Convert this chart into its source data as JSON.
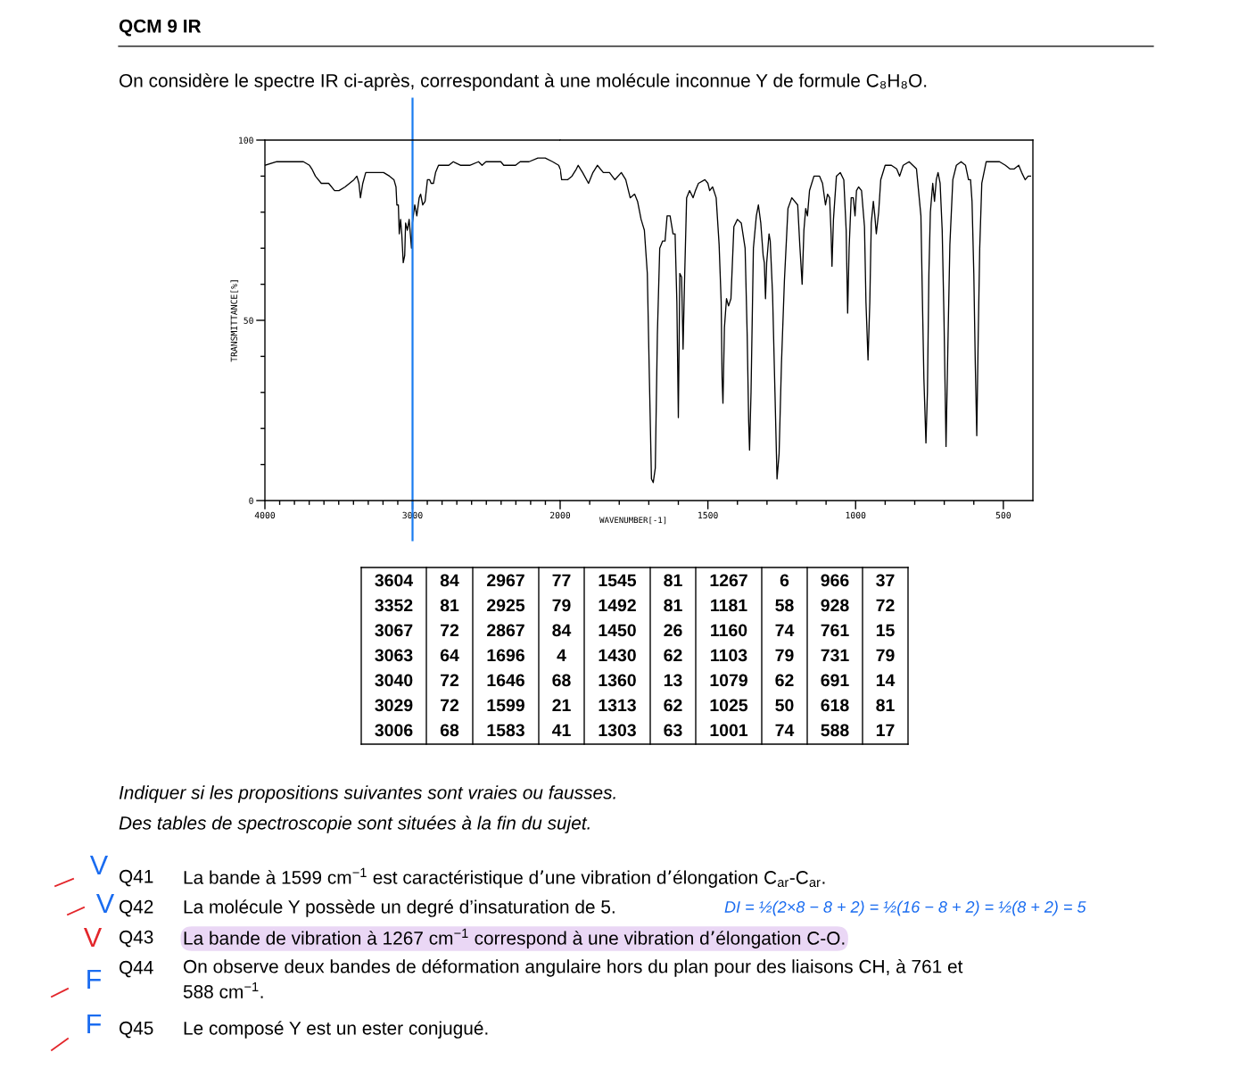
{
  "chart_data": [
    {
      "type": "line",
      "title": "QCM 9 IR",
      "subtitle": "On considère le spectre IR ci-après, correspondant à une molécule inconnue Y de formule C₈H₈O.",
      "ylabel": "TRANSMITTANCE[%]",
      "color": "#000000",
      "x": [
        4000,
        3920,
        3819,
        3739,
        3698,
        3682,
        3658,
        3618,
        3568,
        3528,
        3498,
        3457,
        3397,
        3377,
        3363,
        3353,
        3337,
        3317,
        3276,
        3196,
        3156,
        3126,
        3112,
        3106,
        3096,
        3090,
        3081,
        3073,
        3063,
        3053,
        3047,
        3035,
        3023,
        3015,
        3007,
        3001,
        2985,
        2971,
        2955,
        2945,
        2931,
        2915,
        2899,
        2884,
        2874,
        2858,
        2844,
        2824,
        2754,
        2724,
        2673,
        2643,
        2613,
        2553,
        2529,
        2503,
        2402,
        2382,
        2302,
        2271,
        2211,
        2151,
        2101,
        2051,
        2010,
        2000
      ],
      "values": [
        93,
        94,
        94,
        94,
        93,
        92,
        90,
        88,
        88,
        86,
        86,
        87,
        89,
        90,
        88,
        84,
        88,
        91,
        91,
        91,
        90,
        89,
        87,
        82,
        82,
        74,
        78,
        74,
        66,
        68,
        77,
        75,
        78,
        74,
        70,
        77,
        82,
        79,
        84,
        85,
        82,
        83,
        89,
        89,
        88,
        88,
        91,
        93,
        93,
        94,
        93,
        93,
        93,
        94,
        93,
        94,
        94,
        93,
        93,
        94,
        94,
        95,
        95,
        94,
        93,
        92
      ],
      "xlim": [
        4000,
        2000
      ],
      "ylim": [
        0,
        100
      ],
      "xticks": [
        4000,
        {
          "value": 3900,
          "label": null
        },
        {
          "value": 3800,
          "label": null
        },
        {
          "value": 3700,
          "label": null
        },
        {
          "value": 3600,
          "label": null
        },
        {
          "value": 3500,
          "label": null
        },
        {
          "value": 3400,
          "label": null
        },
        {
          "value": 3300,
          "label": null
        },
        {
          "value": 3200,
          "label": null
        },
        {
          "value": 3100,
          "label": null
        },
        3000,
        {
          "value": 2900,
          "label": null
        },
        {
          "value": 2800,
          "label": null
        },
        {
          "value": 2700,
          "label": null
        },
        {
          "value": 2600,
          "label": null
        },
        {
          "value": 2500,
          "label": null
        },
        {
          "value": 2400,
          "label": null
        },
        {
          "value": 2300,
          "label": null
        },
        {
          "value": 2200,
          "label": null
        },
        {
          "value": 2100,
          "label": null
        }
      ],
      "yticks": [
        0,
        {
          "value": 10,
          "label": null
        },
        {
          "value": 20,
          "label": null
        },
        {
          "value": 30,
          "label": null
        },
        {
          "value": 40,
          "label": null
        },
        50,
        {
          "value": 60,
          "label": null
        },
        {
          "value": 70,
          "label": null
        },
        {
          "value": 80,
          "label": null
        },
        {
          "value": 90,
          "label": null
        },
        100
      ],
      "ref_lines": [
        {
          "axis": "x",
          "value": 3000,
          "color": "#1a7cf0"
        }
      ]
    },
    {
      "type": "line",
      "xlabel": "WAVENUMBER[-1]",
      "color": "#000000",
      "x": [
        2000,
        1995,
        1975,
        1960,
        1945,
        1939,
        1924,
        1904,
        1889,
        1874,
        1854,
        1833,
        1815,
        1793,
        1778,
        1763,
        1748,
        1738,
        1726,
        1715,
        1705,
        1698,
        1691,
        1685,
        1678,
        1671,
        1663,
        1653,
        1645,
        1638,
        1628,
        1618,
        1611,
        1605,
        1600,
        1595,
        1589,
        1584,
        1579,
        1572,
        1562,
        1550,
        1542,
        1532,
        1510,
        1500,
        1494,
        1484,
        1472,
        1462,
        1455,
        1452,
        1449,
        1444,
        1437,
        1430,
        1422,
        1412,
        1400,
        1387,
        1374,
        1367,
        1362,
        1359,
        1354,
        1346,
        1336,
        1329,
        1321,
        1313,
        1309,
        1305,
        1301,
        1293,
        1289,
        1281,
        1273,
        1266,
        1259,
        1251,
        1241,
        1229,
        1216,
        1196,
        1189,
        1181,
        1175,
        1169,
        1163,
        1156,
        1141,
        1122,
        1112,
        1102,
        1095,
        1088,
        1083,
        1080,
        1075,
        1065,
        1052,
        1040,
        1032,
        1027,
        1022,
        1015,
        1008,
        1002,
        997,
        990,
        980,
        970,
        965,
        958,
        952,
        947,
        940,
        935,
        930,
        922,
        915,
        900,
        879,
        861,
        851,
        839,
        819,
        794,
        779,
        774,
        769,
        762,
        757,
        752,
        747,
        739,
        733,
        727,
        721,
        714,
        707,
        701,
        694,
        687,
        681,
        671,
        659,
        643,
        628,
        618,
        611,
        606,
        600,
        595,
        590,
        585,
        580,
        573,
        558,
        513,
        493,
        478,
        463,
        448,
        438,
        426,
        416,
        408
      ],
      "values": [
        92,
        89,
        89,
        90,
        92,
        93,
        91,
        88,
        91,
        93,
        91,
        91,
        89,
        91,
        89,
        84,
        85,
        83,
        78,
        75,
        63,
        34,
        6,
        5,
        9,
        46,
        70,
        72,
        72,
        79,
        79,
        74,
        74,
        55,
        23,
        63,
        62,
        42,
        61,
        84,
        86,
        84,
        86,
        88,
        89,
        88,
        86,
        87,
        84,
        71,
        55,
        34,
        27,
        48,
        56,
        54,
        56,
        76,
        78,
        77,
        70,
        46,
        22,
        14,
        30,
        70,
        79,
        82,
        77,
        68,
        66,
        56,
        66,
        74,
        72,
        57,
        30,
        6,
        13,
        38,
        61,
        81,
        84,
        82,
        71,
        60,
        75,
        81,
        79,
        86,
        90,
        90,
        88,
        82,
        85,
        84,
        74,
        65,
        78,
        90,
        91,
        89,
        75,
        52,
        70,
        84,
        84,
        79,
        86,
        87,
        86,
        76,
        55,
        39,
        55,
        77,
        83,
        79,
        74,
        80,
        89,
        93,
        93,
        92,
        90,
        93,
        94,
        92,
        79,
        56,
        34,
        16,
        30,
        63,
        80,
        88,
        83,
        89,
        91,
        88,
        75,
        51,
        15,
        46,
        71,
        89,
        93,
        94,
        93,
        89,
        89,
        83,
        63,
        38,
        18,
        46,
        70,
        88,
        94,
        94,
        93,
        92,
        92,
        93,
        91,
        89,
        90,
        90
      ],
      "xlim": [
        2000,
        400
      ],
      "ylim": [
        0,
        100
      ],
      "xticks": [
        2000,
        {
          "value": 1900,
          "label": null
        },
        {
          "value": 1800,
          "label": null
        },
        {
          "value": 1700,
          "label": null
        },
        {
          "value": 1600,
          "label": null
        },
        1500,
        {
          "value": 1400,
          "label": null
        },
        {
          "value": 1300,
          "label": null
        },
        {
          "value": 1200,
          "label": null
        },
        {
          "value": 1100,
          "label": null
        },
        1000,
        {
          "value": 900,
          "label": null
        },
        {
          "value": 800,
          "label": null
        },
        {
          "value": 700,
          "label": null
        },
        {
          "value": 600,
          "label": null
        },
        500
      ],
      "tick_labels": "x"
    },
    {
      "type": "other",
      "annotations": [
        "3604 84 2967 77 1545 81 1267 6 966 37",
        "3352 81 2925 79 1492 81 1181 58 928 72",
        "3067 72 2867 84 1450 26 1160 74 761 15",
        "3063 64 1696 4 1430 62 1103 79 731 79",
        "3040 72 1646 68 1360 13 1079 62 691 14",
        "3029 72 1599 21 1313 62 1025 50 618 81",
        "3006 68 1583 41 1303 63 1001 74 588 17"
      ]
    },
    {
      "type": "other",
      "annotations": [
        "Indiquer si les propositions suivantes sont vraies ou fausses.",
        "Des tables de spectroscopie sont situées à la fin du sujet.",
        "Q41",
        "La bande à 1599 cm$^{−1}$ est caractéristique d’une vibration d’élongation C$_{ar}$-C$_{ar}$.",
        "Q42",
        "La molécule Y possède un degré d’insaturation de 5.",
        "Q43",
        "La bande de vibration à 1267 cm$^{−1}$ correspond à une vibration d’élongation C-O.",
        "Q44",
        "On observe deux bandes de déformation angulaire hors du plan pour des liaisons CH, à 761 et\n588 cm$^{−1}$.",
        "Q45",
        "Le composé Y est un ester conjugué.",
        "V",
        "V",
        "V",
        "F",
        "F",
        "DI = ½(2×8 − 8 + 2) = ½(16 − 8 + 2) = ½(8 + 2) = 5"
      ]
    }
  ]
}
